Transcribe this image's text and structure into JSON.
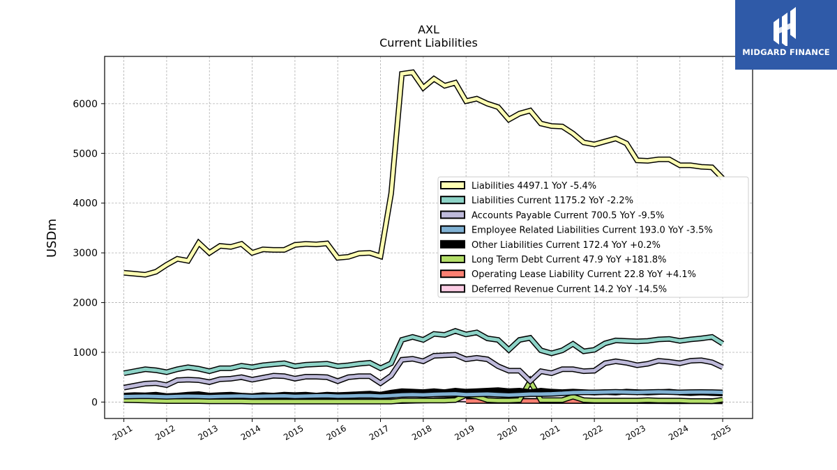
{
  "logo": {
    "text": "MIDGARD FINANCE",
    "icon": "midgard-logo-icon",
    "color": "#2f5aa8"
  },
  "chart_data": {
    "type": "line",
    "title": "AXL",
    "subtitle": "Current  Liabilities",
    "ylabel": "USDm",
    "xlim": [
      2010.55,
      2025.7
    ],
    "ylim": [
      -330,
      6950
    ],
    "grid": true,
    "legend_position": "center-right",
    "x_ticks": [
      2011,
      2012,
      2013,
      2014,
      2015,
      2016,
      2017,
      2018,
      2019,
      2020,
      2021,
      2022,
      2023,
      2024,
      2025
    ],
    "x_tick_labels": [
      "2011",
      "2012",
      "2013",
      "2014",
      "2015",
      "2016",
      "2017",
      "2018",
      "2019",
      "2020",
      "2021",
      "2022",
      "2023",
      "2024",
      "2025"
    ],
    "y_ticks": [
      0,
      1000,
      2000,
      3000,
      4000,
      5000,
      6000
    ],
    "y_tick_labels": [
      "0",
      "1000",
      "2000",
      "3000",
      "4000",
      "5000",
      "6000"
    ],
    "x": [
      2011.0,
      2011.25,
      2011.5,
      2011.75,
      2012.0,
      2012.25,
      2012.5,
      2012.75,
      2013.0,
      2013.25,
      2013.5,
      2013.75,
      2014.0,
      2014.25,
      2014.5,
      2014.75,
      2015.0,
      2015.25,
      2015.5,
      2015.75,
      2016.0,
      2016.25,
      2016.5,
      2016.75,
      2017.0,
      2017.25,
      2017.5,
      2017.75,
      2018.0,
      2018.25,
      2018.5,
      2018.75,
      2019.0,
      2019.25,
      2019.5,
      2019.75,
      2020.0,
      2020.25,
      2020.5,
      2020.75,
      2021.0,
      2021.25,
      2021.5,
      2021.75,
      2022.0,
      2022.25,
      2022.5,
      2022.75,
      2023.0,
      2023.25,
      2023.5,
      2023.75,
      2024.0,
      2024.25,
      2024.5,
      2024.75,
      2025.0
    ],
    "series": [
      {
        "name": "Liabilities",
        "legend": "Liabilities  4497.1 YoY -5.4%",
        "color": "#ffffb3",
        "values": [
          2600,
          2580,
          2560,
          2620,
          2760,
          2880,
          2840,
          3200,
          3000,
          3140,
          3120,
          3180,
          3000,
          3070,
          3060,
          3060,
          3160,
          3180,
          3170,
          3190,
          2900,
          2920,
          2990,
          3000,
          2930,
          4200,
          6600,
          6630,
          6320,
          6500,
          6360,
          6420,
          6050,
          6100,
          6000,
          5930,
          5680,
          5800,
          5860,
          5600,
          5550,
          5540,
          5400,
          5220,
          5180,
          5240,
          5300,
          5200,
          4860,
          4850,
          4880,
          4880,
          4760,
          4760,
          4730,
          4720,
          4497
        ]
      },
      {
        "name": "Liabilities Current",
        "legend": "Liabilities Current  1175.2 YoY -2.2%",
        "color": "#8dd3c7",
        "values": [
          580,
          620,
          660,
          640,
          600,
          660,
          700,
          670,
          620,
          680,
          680,
          730,
          700,
          740,
          760,
          780,
          720,
          750,
          760,
          770,
          720,
          740,
          770,
          790,
          680,
          780,
          1250,
          1310,
          1250,
          1370,
          1350,
          1430,
          1360,
          1400,
          1280,
          1250,
          1050,
          1250,
          1290,
          1040,
          980,
          1040,
          1170,
          1020,
          1050,
          1180,
          1240,
          1230,
          1220,
          1230,
          1260,
          1270,
          1230,
          1260,
          1280,
          1310,
          1175
        ]
      },
      {
        "name": "Accounts Payable Current",
        "legend": "Accounts Payable Current  700.5 YoY -9.5%",
        "color": "#bebada",
        "values": [
          290,
          330,
          370,
          380,
          340,
          440,
          450,
          440,
          400,
          460,
          470,
          500,
          450,
          490,
          530,
          520,
          470,
          510,
          510,
          500,
          420,
          500,
          520,
          520,
          380,
          530,
          850,
          870,
          820,
          930,
          940,
          950,
          860,
          890,
          860,
          720,
          630,
          630,
          420,
          620,
          580,
          660,
          660,
          620,
          630,
          780,
          820,
          790,
          740,
          770,
          830,
          810,
          780,
          830,
          840,
          800,
          700
        ]
      },
      {
        "name": "Employee Related Liabilities Current",
        "legend": "Employee Related Liabilities Current  193.0 YoY -3.5%",
        "color": "#80b1d3",
        "values": [
          110,
          115,
          118,
          112,
          105,
          112,
          118,
          115,
          108,
          115,
          118,
          122,
          112,
          118,
          122,
          125,
          115,
          120,
          125,
          128,
          118,
          122,
          128,
          130,
          120,
          130,
          145,
          150,
          145,
          155,
          160,
          165,
          150,
          155,
          160,
          150,
          140,
          150,
          160,
          160,
          165,
          175,
          190,
          195,
          195,
          200,
          205,
          200,
          195,
          200,
          205,
          200,
          195,
          200,
          202,
          200,
          193
        ]
      },
      {
        "name": "Other Liabilities Current",
        "legend": "Other Liabilities Current  172.4 YoY +0.2%",
        "color": "#000000",
        "values": [
          130,
          140,
          135,
          150,
          120,
          130,
          150,
          160,
          130,
          140,
          150,
          130,
          120,
          140,
          130,
          150,
          140,
          150,
          130,
          150,
          140,
          150,
          160,
          170,
          150,
          190,
          220,
          210,
          200,
          220,
          200,
          230,
          210,
          220,
          230,
          240,
          220,
          230,
          200,
          230,
          210,
          200,
          210,
          200,
          190,
          200,
          190,
          210,
          200,
          190,
          200,
          210,
          190,
          180,
          190,
          180,
          172
        ]
      },
      {
        "name": "Long Term Debt Current",
        "legend": "Long Term Debt Current  47.9 YoY +181.8%",
        "color": "#b3de69",
        "values": [
          40,
          35,
          30,
          25,
          20,
          20,
          20,
          20,
          15,
          15,
          15,
          15,
          10,
          10,
          10,
          10,
          10,
          10,
          10,
          10,
          10,
          10,
          10,
          10,
          10,
          10,
          30,
          30,
          30,
          30,
          30,
          40,
          140,
          110,
          40,
          30,
          30,
          40,
          420,
          40,
          40,
          40,
          110,
          40,
          30,
          30,
          30,
          30,
          30,
          40,
          30,
          30,
          30,
          20,
          20,
          17,
          48
        ]
      },
      {
        "name": "Operating Lease Liability Current",
        "legend": "Operating Lease Liability Current  22.8 YoY +4.1%",
        "color": "#fb8072",
        "values": [
          null,
          null,
          null,
          null,
          null,
          null,
          null,
          null,
          null,
          null,
          null,
          null,
          null,
          null,
          null,
          null,
          null,
          null,
          null,
          null,
          null,
          null,
          null,
          null,
          null,
          null,
          null,
          null,
          null,
          null,
          null,
          null,
          20,
          21,
          22,
          22,
          22,
          22,
          22,
          22,
          22,
          22,
          22,
          22,
          22,
          22,
          22,
          22,
          22,
          22,
          22,
          22,
          22,
          22,
          22,
          22,
          23
        ]
      },
      {
        "name": "Deferred Revenue Current",
        "legend": "Deferred Revenue Current  14.2 YoY -14.5%",
        "color": "#fccde5",
        "values": [
          80,
          70,
          60,
          45,
          35,
          30,
          28,
          25,
          25,
          25,
          22,
          22,
          20,
          20,
          20,
          18,
          18,
          18,
          18,
          18,
          16,
          16,
          16,
          16,
          16,
          16,
          20,
          25,
          30,
          35,
          45,
          55,
          50,
          48,
          40,
          32,
          30,
          28,
          26,
          24,
          22,
          22,
          22,
          20,
          20,
          20,
          20,
          20,
          20,
          18,
          18,
          17,
          17,
          16,
          16,
          16,
          14
        ]
      }
    ]
  }
}
